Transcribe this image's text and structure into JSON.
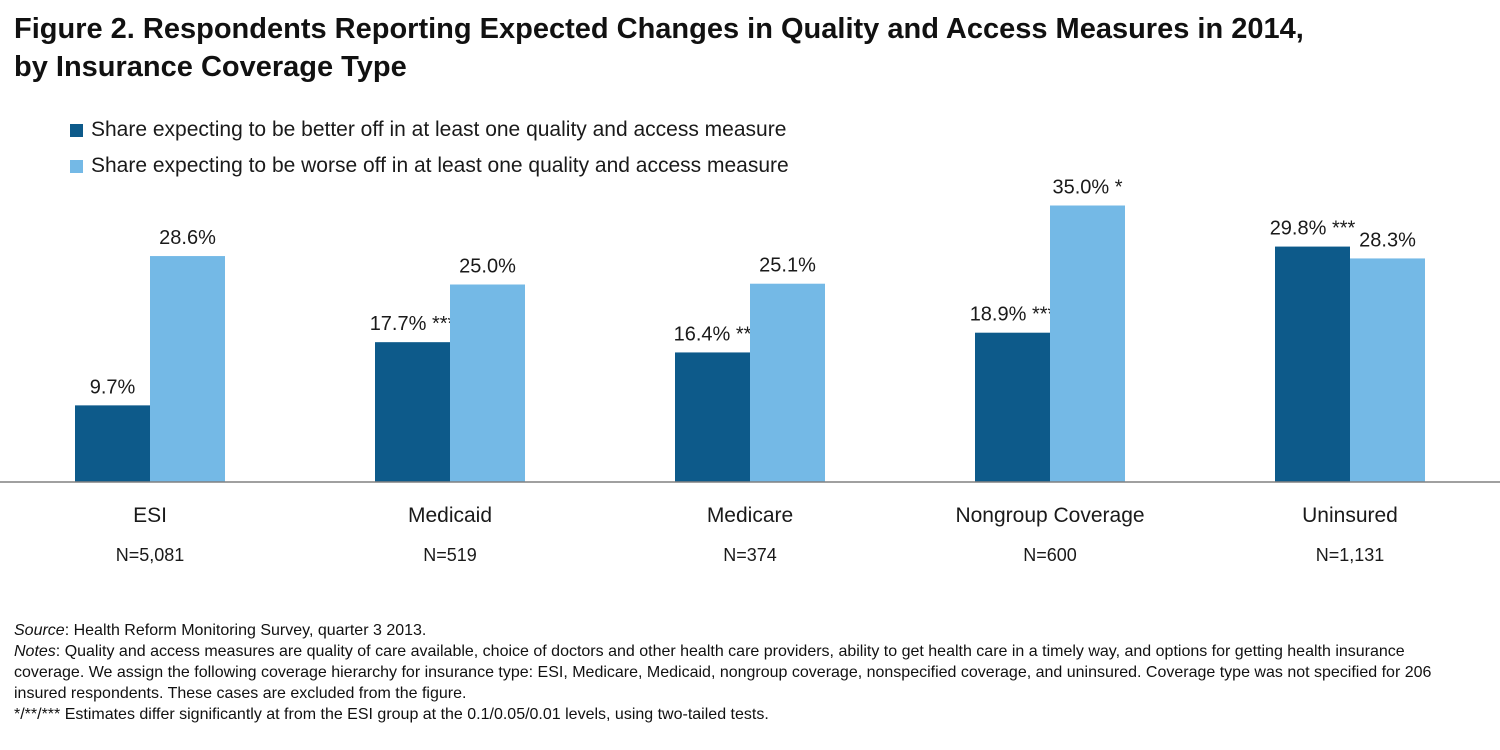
{
  "title_line1": "Figure 2. Respondents Reporting Expected Changes in Quality and Access Measures in 2014,",
  "title_line2": "by Insurance Coverage Type",
  "colors": {
    "better": "#0d5a8a",
    "worse": "#74b9e6",
    "axis": "#808080"
  },
  "chart_data": {
    "type": "bar",
    "title": "Figure 2. Respondents Reporting Expected Changes in Quality and Access Measures in 2014, by Insurance Coverage Type",
    "categories": [
      "ESI",
      "Medicaid",
      "Medicare",
      "Nongroup Coverage",
      "Uninsured"
    ],
    "sample_sizes": [
      "N=5,081",
      "N=519",
      "N=374",
      "N=600",
      "N=1,131"
    ],
    "series": [
      {
        "name": "Share expecting to be better off in at least one quality and access measure",
        "values": [
          9.7,
          17.7,
          16.4,
          18.9,
          29.8
        ],
        "labels": [
          "9.7%",
          "17.7% ***",
          "16.4% **",
          "18.9% ***",
          "29.8% ***"
        ]
      },
      {
        "name": "Share expecting to be worse off in at least one quality and access measure",
        "values": [
          28.6,
          25.0,
          25.1,
          35.0,
          28.3
        ],
        "labels": [
          "28.6%",
          "25.0%",
          "25.1%",
          "35.0% *",
          "28.3%"
        ]
      }
    ],
    "xlabel": "",
    "ylabel": "",
    "ylim": [
      0,
      35
    ],
    "grid": false,
    "legend": "top-left"
  },
  "footer": {
    "source_label": "Source",
    "source_text": ": Health Reform Monitoring Survey, quarter 3 2013.",
    "notes_label": "Notes",
    "notes_text": ": Quality and access measures are quality of care available, choice of doctors and other health care providers, ability to get health care in a timely way, and options for getting health insurance coverage. We assign the following coverage hierarchy for insurance type: ESI, Medicare, Medicaid, nongroup coverage, nonspecified coverage, and uninsured. Coverage type was not specified for 206 insured respondents. These cases are excluded from the figure.",
    "significance": "*/**/*** Estimates differ significantly at from the ESI group at the 0.1/0.05/0.01 levels, using two-tailed tests."
  }
}
